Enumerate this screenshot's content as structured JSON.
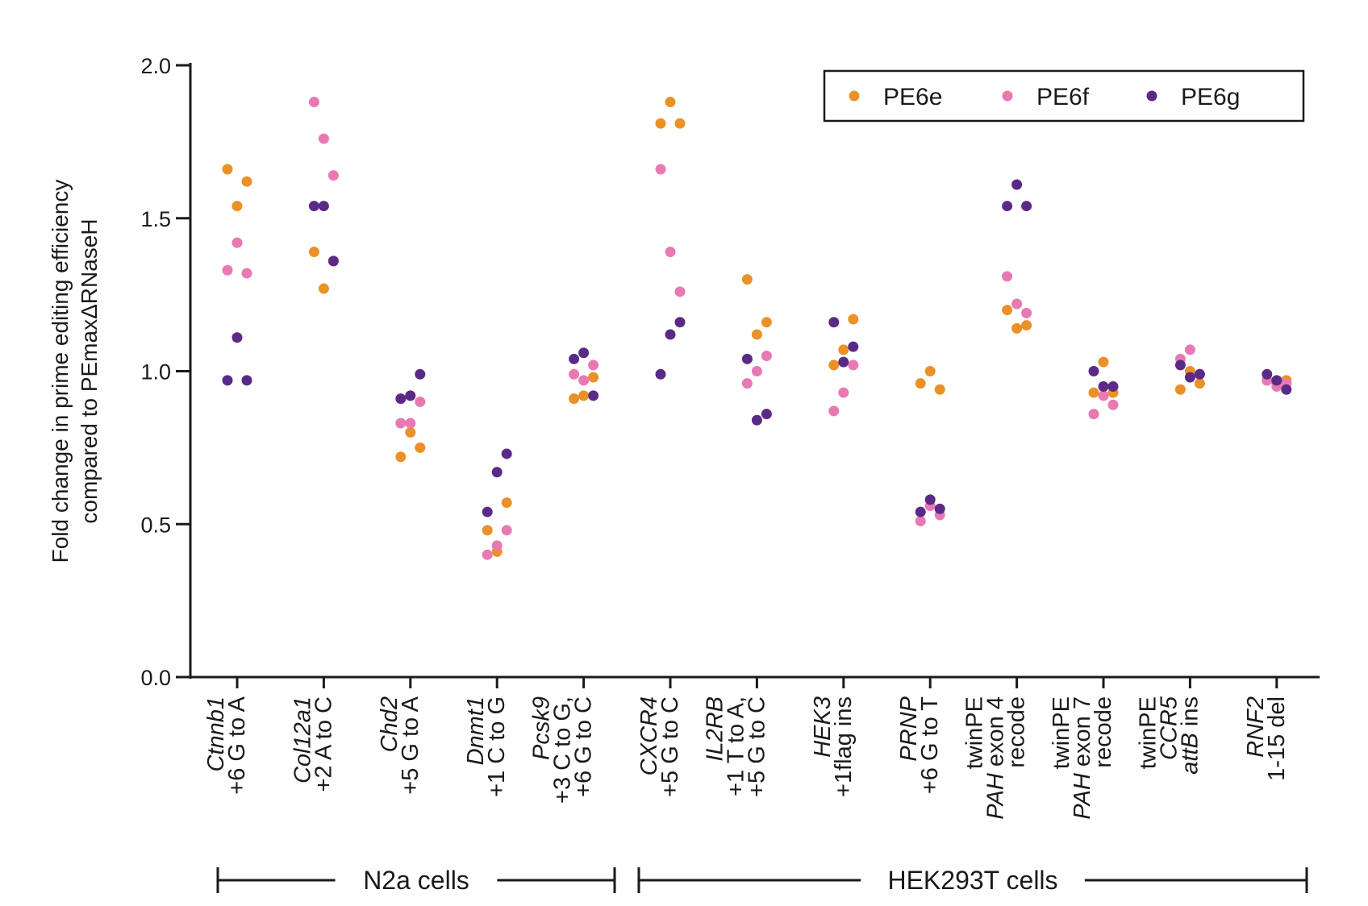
{
  "chart_data": {
    "type": "scatter",
    "ylabel": [
      "Fold change in prime editing efficiency",
      "compared to PEmaxΔRNaseH"
    ],
    "ylim": [
      0,
      2
    ],
    "yticks": [
      "0.0",
      "0.5",
      "1.0",
      "1.5",
      "2.0"
    ],
    "grid": false,
    "legend_position": "top-right",
    "colors": {
      "PE6e": "#ea9227",
      "PE6f": "#e979b3",
      "PE6g": "#5b2a86"
    },
    "categories": [
      {
        "lines": [
          {
            "text": "Ctnnb1",
            "italic": true
          },
          {
            "text": "+6 G to A"
          }
        ]
      },
      {
        "lines": [
          {
            "text": "Col12a1",
            "italic": true
          },
          {
            "text": "+2 A to C"
          }
        ]
      },
      {
        "lines": [
          {
            "text": "Chd2",
            "italic": true
          },
          {
            "text": "+5 G to A"
          }
        ]
      },
      {
        "lines": [
          {
            "text": "Dnmt1",
            "italic": true
          },
          {
            "text": "+1 C to G"
          }
        ]
      },
      {
        "lines": [
          {
            "text": "Pcsk9",
            "italic": true
          },
          {
            "text": "+3 C to G,"
          },
          {
            "text": "+6 G to C"
          }
        ]
      },
      {
        "lines": [
          {
            "text": "CXCR4",
            "italic": true
          },
          {
            "text": "+5 G to C"
          }
        ]
      },
      {
        "lines": [
          {
            "text": "IL2RB",
            "italic": true
          },
          {
            "text": "+1 T to A,"
          },
          {
            "text": "+5 G to C"
          }
        ]
      },
      {
        "lines": [
          {
            "text": "HEK3",
            "italic": true
          },
          {
            "text": "+1flag ins"
          }
        ]
      },
      {
        "lines": [
          {
            "text": "PRNP",
            "italic": true
          },
          {
            "text": "+6 G to T"
          }
        ]
      },
      {
        "lines": [
          {
            "text": "twinPE"
          },
          {
            "parts": [
              {
                "text": "PAH",
                "italic": true
              },
              {
                "text": " exon 4"
              }
            ]
          },
          {
            "text": "recode"
          }
        ]
      },
      {
        "lines": [
          {
            "text": "twinPE"
          },
          {
            "parts": [
              {
                "text": "PAH",
                "italic": true
              },
              {
                "text": " exon 7"
              }
            ]
          },
          {
            "text": "recode"
          }
        ]
      },
      {
        "lines": [
          {
            "text": "twinPE"
          },
          {
            "text": "CCR5",
            "italic": true
          },
          {
            "parts": [
              {
                "text": "attB",
                "italic": true
              },
              {
                "text": " ins"
              }
            ]
          }
        ]
      },
      {
        "lines": [
          {
            "text": "RNF2",
            "italic": true
          },
          {
            "text": "1-15 del"
          }
        ]
      }
    ],
    "series": [
      {
        "name": "PE6e",
        "values": [
          [
            1.66,
            1.54,
            1.62
          ],
          [
            1.39,
            1.27,
            1.36
          ],
          [
            0.72,
            0.8,
            0.75
          ],
          [
            0.48,
            0.41,
            0.57
          ],
          [
            0.91,
            0.92,
            0.98
          ],
          [
            1.81,
            1.88,
            1.81
          ],
          [
            1.3,
            1.12,
            1.16
          ],
          [
            1.02,
            1.07,
            1.17
          ],
          [
            0.96,
            1.0,
            0.94
          ],
          [
            1.2,
            1.14,
            1.15
          ],
          [
            0.93,
            1.03,
            0.93
          ],
          [
            0.94,
            1.0,
            0.96
          ],
          [
            0.97,
            0.96,
            0.97
          ]
        ]
      },
      {
        "name": "PE6f",
        "values": [
          [
            1.33,
            1.42,
            1.32
          ],
          [
            1.88,
            1.76,
            1.64
          ],
          [
            0.83,
            0.83,
            0.9
          ],
          [
            0.4,
            0.43,
            0.48
          ],
          [
            0.99,
            0.97,
            1.02
          ],
          [
            1.66,
            1.39,
            1.26
          ],
          [
            0.96,
            1.0,
            1.05
          ],
          [
            0.87,
            0.93,
            1.02
          ],
          [
            0.51,
            0.56,
            0.53
          ],
          [
            1.31,
            1.22,
            1.19
          ],
          [
            0.86,
            0.92,
            0.89
          ],
          [
            1.04,
            1.07,
            0.99
          ],
          [
            0.97,
            0.95,
            0.96
          ]
        ]
      },
      {
        "name": "PE6g",
        "values": [
          [
            0.97,
            1.11,
            0.97
          ],
          [
            1.54,
            1.54,
            1.36
          ],
          [
            0.91,
            0.92,
            0.99
          ],
          [
            0.54,
            0.67,
            0.73
          ],
          [
            1.04,
            1.06,
            0.92
          ],
          [
            0.99,
            1.12,
            1.16
          ],
          [
            1.04,
            0.84,
            0.86
          ],
          [
            1.16,
            1.03,
            1.08
          ],
          [
            0.54,
            0.58,
            0.55
          ],
          [
            1.54,
            1.61,
            1.54
          ],
          [
            1.0,
            0.95,
            0.95
          ],
          [
            1.02,
            0.98,
            0.99
          ],
          [
            0.99,
            0.97,
            0.94
          ]
        ]
      }
    ],
    "groups": [
      {
        "label": "N2a cells",
        "from": 0,
        "to": 4
      },
      {
        "label": "HEK293T cells",
        "from": 5,
        "to": 12
      }
    ]
  }
}
